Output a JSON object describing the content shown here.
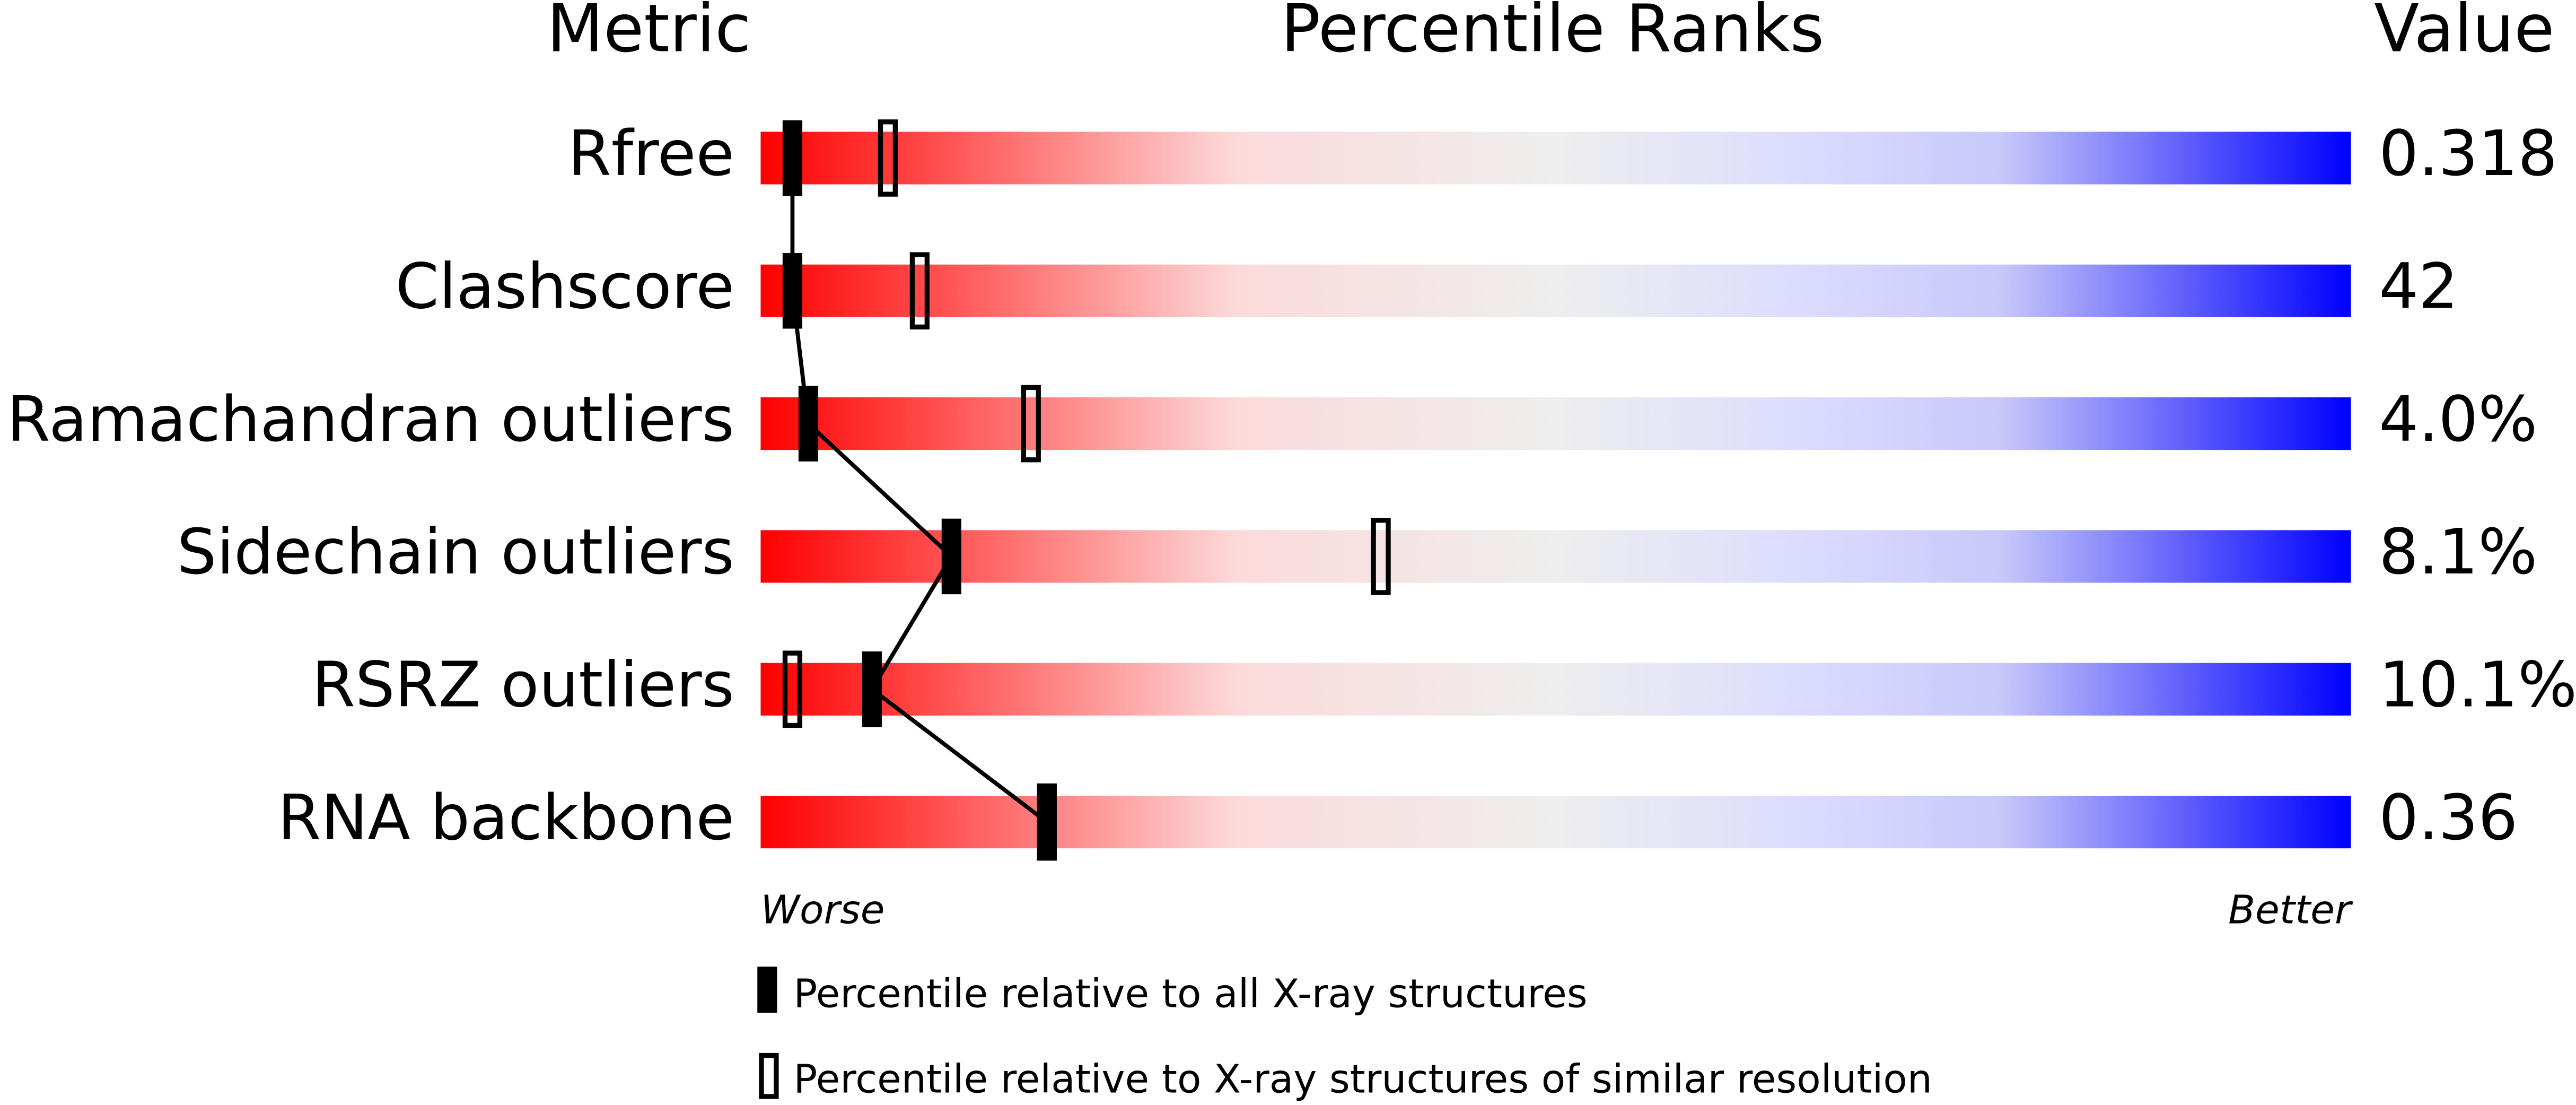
{
  "header": {
    "metric": "Metric",
    "percentile": "Percentile Ranks",
    "value": "Value"
  },
  "xlim": [
    0,
    100
  ],
  "rows": [
    {
      "name": "Rfree",
      "value": "0.318",
      "all": 2,
      "similar": 8
    },
    {
      "name": "Clashscore",
      "value": "42",
      "all": 2,
      "similar": 10
    },
    {
      "name": "Ramachandran outliers",
      "value": "4.0%",
      "all": 3,
      "similar": 17
    },
    {
      "name": "Sidechain outliers",
      "value": "8.1%",
      "all": 12,
      "similar": 39
    },
    {
      "name": "RSRZ outliers",
      "value": "10.1%",
      "all": 7,
      "similar": 2
    },
    {
      "name": "RNA backbone",
      "value": "0.36",
      "all": 18,
      "similar": 18
    }
  ],
  "scale": {
    "worse": "Worse",
    "better": "Better"
  },
  "legend": {
    "all": "Percentile relative to all X-ray structures",
    "similar": "Percentile relative to X-ray structures of similar resolution"
  }
}
